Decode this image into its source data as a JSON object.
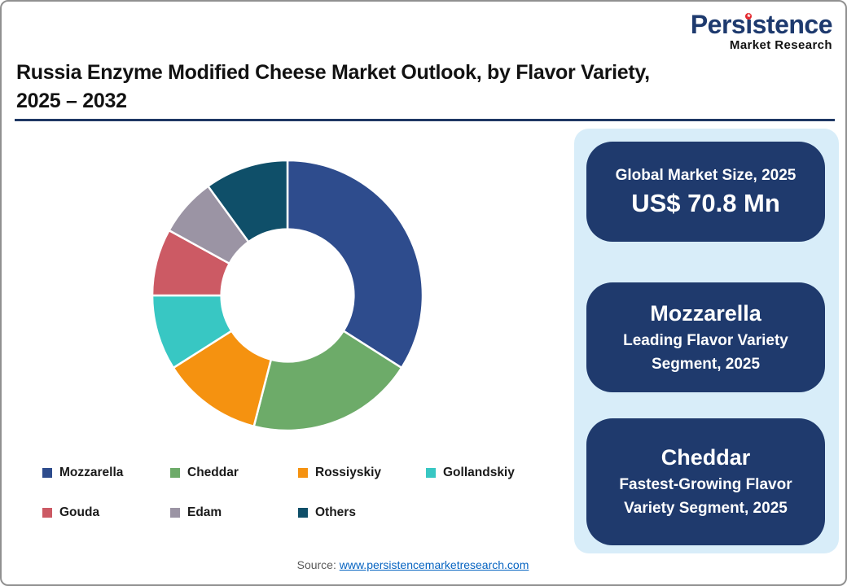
{
  "page": {
    "title_line1": "Russia Enzyme Modified Cheese Market Outlook, by Flavor Variety,",
    "title_line2": "2025 – 2032",
    "source_label": "Source:",
    "source_link_text": "www.persistencemarketresearch.com"
  },
  "logo": {
    "brand": "Persistence",
    "brand_pre": "Pers",
    "brand_i_glyph": "ı",
    "brand_post": "stence",
    "star_glyph": "★",
    "subtitle": "Market Research"
  },
  "chart_data": {
    "type": "pie",
    "variant": "donut",
    "title": "Russia Enzyme Modified Cheese Market, by Flavor Variety, 2025 (share of market)",
    "start_angle_deg": 0,
    "direction": "clockwise",
    "inner_radius_ratio": 0.49,
    "legend_position": "bottom",
    "value_unit": "percent (estimated from arc angles; no data labels shown)",
    "segments": [
      {
        "label": "Mozzarella",
        "value": 34,
        "color": "#2e4c8d"
      },
      {
        "label": "Cheddar",
        "value": 20,
        "color": "#6dab69"
      },
      {
        "label": "Rossiyskiy",
        "value": 12,
        "color": "#f59210"
      },
      {
        "label": "Gollandskiy",
        "value": 9,
        "color": "#38c7c3"
      },
      {
        "label": "Gouda",
        "value": 8,
        "color": "#cc5a64"
      },
      {
        "label": "Edam",
        "value": 7,
        "color": "#9b94a4"
      },
      {
        "label": "Others",
        "value": 10,
        "color": "#0f4f69"
      }
    ]
  },
  "cards": [
    {
      "title": "Global Market Size, 2025",
      "value": "US$ 70.8 Mn"
    },
    {
      "title": "Mozzarella",
      "subtitle": "Leading Flavor Variety Segment, 2025"
    },
    {
      "title": "Cheddar",
      "subtitle": "Fastest-Growing Flavor Variety Segment, 2025"
    }
  ],
  "colors": {
    "card_navy": "#1f3a6d",
    "panel_blue": "#d8edf9",
    "rule_navy": "#1f3864",
    "logo_navy": "#1e3a6e",
    "logo_dot_red": "#e4252b",
    "link_blue": "#0563c1",
    "source_gray": "#595959"
  }
}
